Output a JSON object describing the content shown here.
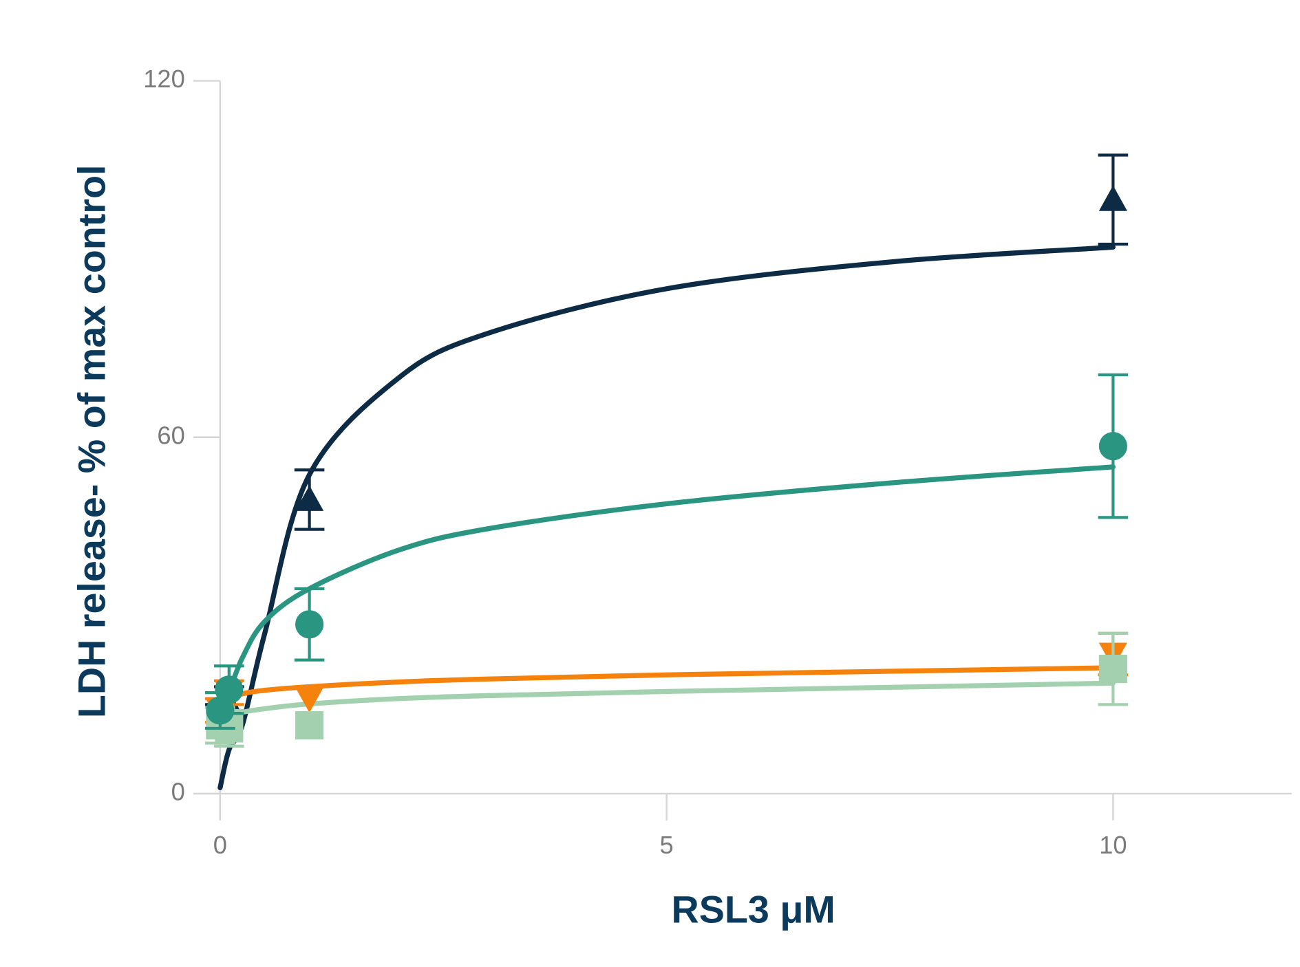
{
  "chart_data": {
    "type": "scatter",
    "y_label": "LDH release- % of max control",
    "x_label": "RSL3 μM",
    "xlim": [
      -0.3,
      12
    ],
    "ylim": [
      -4.5,
      120
    ],
    "xticks": [
      0,
      5,
      10
    ],
    "yticks": [
      0,
      60,
      120
    ],
    "x": [
      0,
      0.1,
      1,
      10
    ],
    "fit_x": [
      0,
      0.1,
      0.25,
      0.5,
      1,
      2,
      3,
      5,
      7.5,
      10
    ],
    "series": [
      {
        "color": "#0d2b45",
        "marker": "triangle-up",
        "values": [
          13,
          15,
          49.5,
          100
        ],
        "errors": [
          2,
          3,
          5,
          7.5
        ],
        "fit_values": [
          1,
          7.4,
          11.6,
          27,
          53.7,
          70,
          77.5,
          85,
          89.5,
          92
        ]
      },
      {
        "color": "#f5820d",
        "marker": "triangle-down",
        "values": [
          14,
          17,
          16,
          23.5
        ],
        "errors": [
          2,
          2,
          null,
          3.5
        ],
        "fit_values": [
          15,
          15.8,
          16.8,
          17.4,
          18,
          18.8,
          19.3,
          20,
          20.6,
          21.2
        ]
      },
      {
        "color": "#a3d1b0",
        "marker": "square",
        "values": [
          11.5,
          11,
          11.5,
          21
        ],
        "errors": [
          3,
          3,
          null,
          6
        ],
        "fit_values": [
          12.5,
          13,
          13.7,
          14.3,
          15.1,
          16,
          16.5,
          17.2,
          17.9,
          18.6
        ]
      },
      {
        "color": "#2a9580",
        "marker": "circle",
        "values": [
          14,
          17.5,
          28.5,
          58.5
        ],
        "errors": [
          3,
          4,
          6,
          12
        ],
        "fit_values": [
          null,
          17,
          22.9,
          29,
          34.5,
          41,
          44.6,
          48.8,
          52.3,
          55
        ]
      }
    ]
  }
}
